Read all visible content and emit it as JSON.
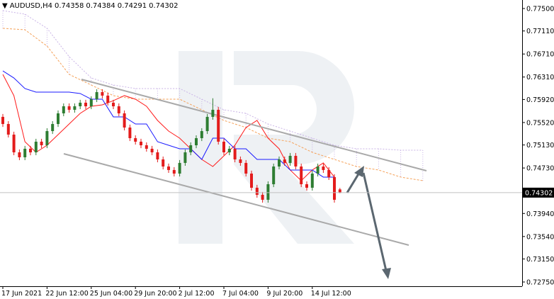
{
  "chart_data": {
    "type": "candlestick",
    "symbol": "AUDUSD,H4",
    "categories": [
      "17 Jun 2021",
      null,
      null,
      null,
      null,
      null,
      null,
      null,
      "22 Jun 12:00",
      null,
      null,
      null,
      null,
      null,
      null,
      null,
      "25 Jun 04:00",
      null,
      null,
      null,
      null,
      null,
      null,
      null,
      "29 Jun 20:00",
      null,
      null,
      null,
      null,
      null,
      null,
      null,
      "2 Jul 12:00",
      null,
      null,
      null,
      null,
      null,
      null,
      null,
      "7 Jul 04:00",
      null,
      null,
      null,
      null,
      null,
      null,
      null,
      "9 Jul 20:00",
      null,
      null,
      null,
      null,
      null,
      null,
      null,
      "14 Jul 12:00",
      null,
      null,
      null,
      null,
      null
    ],
    "open": [
      0.75618,
      0.75494,
      0.7531,
      0.75002,
      0.74916,
      0.75064,
      0.75002,
      0.75187,
      0.75125,
      0.75371,
      0.75494,
      0.75679,
      0.75802,
      0.75741,
      0.75802,
      0.75864,
      0.75802,
      0.75925,
      0.76048,
      0.75987,
      0.75864,
      0.75802,
      0.75679,
      0.75433,
      0.75248,
      0.75187,
      0.75125,
      0.75064,
      0.75002,
      0.74879,
      0.74756,
      0.74695,
      0.74633,
      0.74818,
      0.75002,
      0.75125,
      0.75248,
      0.75371,
      0.75618,
      0.75741,
      0.75187,
      0.75002,
      0.75064,
      0.74879,
      0.74818,
      0.74633,
      0.74387,
      0.74264,
      0.74178,
      0.74448,
      0.74756,
      0.74879,
      0.74818,
      0.74941,
      0.74756,
      0.74448,
      0.74387,
      0.74633,
      0.74756,
      0.74695,
      0.74572,
      0.74358
    ],
    "high": [
      0.75668,
      0.75544,
      0.7536,
      0.75052,
      0.75114,
      0.75114,
      0.75237,
      0.75237,
      0.75421,
      0.75544,
      0.75729,
      0.75852,
      0.75852,
      0.75852,
      0.75914,
      0.75914,
      0.75975,
      0.76098,
      0.76098,
      0.76037,
      0.75914,
      0.75852,
      0.75729,
      0.75483,
      0.75298,
      0.75237,
      0.75175,
      0.75114,
      0.75052,
      0.74929,
      0.74806,
      0.74745,
      0.74868,
      0.75052,
      0.75175,
      0.75298,
      0.75421,
      0.75668,
      0.75941,
      0.75791,
      0.75237,
      0.75114,
      0.75114,
      0.74929,
      0.74868,
      0.74683,
      0.74437,
      0.74314,
      0.74498,
      0.74806,
      0.74929,
      0.74929,
      0.74991,
      0.74991,
      0.74806,
      0.74498,
      0.74683,
      0.74806,
      0.74806,
      0.74745,
      0.74622,
      0.74384
    ],
    "low": [
      0.75444,
      0.7526,
      0.74952,
      0.74866,
      0.74866,
      0.74952,
      0.74952,
      0.75075,
      0.75075,
      0.75321,
      0.75444,
      0.75629,
      0.75691,
      0.75691,
      0.75752,
      0.75752,
      0.75752,
      0.75875,
      0.75937,
      0.75814,
      0.75752,
      0.75629,
      0.75383,
      0.75198,
      0.75137,
      0.75075,
      0.75014,
      0.74952,
      0.74829,
      0.74706,
      0.74645,
      0.74583,
      0.74583,
      0.74768,
      0.74952,
      0.75075,
      0.75198,
      0.75321,
      0.75568,
      0.75137,
      0.74952,
      0.74952,
      0.74829,
      0.74768,
      0.74583,
      0.74337,
      0.74214,
      0.74128,
      0.74128,
      0.74398,
      0.74706,
      0.74768,
      0.74768,
      0.74706,
      0.74398,
      0.74337,
      0.74337,
      0.74583,
      0.74645,
      0.74522,
      0.74128,
      0.74291
    ],
    "close": [
      0.75494,
      0.7531,
      0.75002,
      0.74916,
      0.75064,
      0.75002,
      0.75187,
      0.75125,
      0.75371,
      0.75494,
      0.75679,
      0.75802,
      0.75741,
      0.75802,
      0.75864,
      0.75802,
      0.75925,
      0.76048,
      0.75987,
      0.75864,
      0.75802,
      0.75679,
      0.75433,
      0.75248,
      0.75187,
      0.75125,
      0.75064,
      0.75002,
      0.74879,
      0.74756,
      0.74695,
      0.74633,
      0.74818,
      0.75002,
      0.75125,
      0.75248,
      0.75371,
      0.75618,
      0.75741,
      0.75187,
      0.75002,
      0.75064,
      0.74879,
      0.74818,
      0.74633,
      0.74387,
      0.74264,
      0.74178,
      0.74448,
      0.74756,
      0.74879,
      0.74818,
      0.74941,
      0.74756,
      0.74448,
      0.74387,
      0.74633,
      0.74756,
      0.74695,
      0.74572,
      0.74178,
      0.74302
    ],
    "up_color": "#2e7d32",
    "down_color": "#e31b1b",
    "lines": [
      {
        "color": "#ff1a1a",
        "x": [
          0,
          2,
          4,
          6,
          8,
          10,
          12,
          14,
          16,
          18,
          20,
          22,
          24,
          26,
          28,
          30,
          32,
          34,
          36,
          38,
          40,
          42,
          44,
          46,
          48,
          50,
          52,
          54,
          56,
          58,
          60
        ],
        "values": [
          0.76356,
          0.75987,
          0.75187,
          0.75002,
          0.75125,
          0.7531,
          0.75494,
          0.75679,
          0.75802,
          0.75827,
          0.759,
          0.75987,
          0.75925,
          0.75802,
          0.75556,
          0.75371,
          0.75248,
          0.75064,
          0.74879,
          0.74756,
          0.74941,
          0.75125,
          0.75433,
          0.75556,
          0.75248,
          0.75064,
          0.74695,
          0.7451,
          0.74695,
          0.74818,
          0.74572
        ]
      },
      {
        "color": "#1a1aff",
        "x": [
          0,
          2,
          4,
          6,
          8,
          10,
          12,
          14,
          16,
          18,
          20,
          22,
          24,
          26,
          28,
          30,
          32,
          34,
          36,
          38,
          40,
          42,
          44,
          46,
          48,
          50,
          52,
          54,
          56,
          58,
          60
        ],
        "values": [
          0.76417,
          0.76294,
          0.7611,
          0.76048,
          0.76048,
          0.76048,
          0.76048,
          0.76024,
          0.75925,
          0.75925,
          0.75618,
          0.75618,
          0.75494,
          0.75494,
          0.75187,
          0.75125,
          0.75064,
          0.75064,
          0.74879,
          0.75248,
          0.75248,
          0.75064,
          0.75064,
          0.74879,
          0.74879,
          0.74879,
          0.74695,
          0.74695,
          0.74695,
          0.74572,
          0.74572
        ]
      }
    ],
    "cloud": {
      "x": [
        0,
        4,
        8,
        12,
        16,
        20,
        24,
        28,
        32,
        36,
        40,
        44,
        48,
        52,
        56,
        60,
        64,
        68,
        72,
        76
      ],
      "upper": [
        0.77463,
        0.77402,
        0.77156,
        0.76664,
        0.76294,
        0.76171,
        0.7611,
        0.7611,
        0.7611,
        0.75925,
        0.75741,
        0.75679,
        0.75494,
        0.75371,
        0.75248,
        0.75125,
        0.75064,
        0.75064,
        0.75039,
        0.75039
      ],
      "lower": [
        0.77156,
        0.77131,
        0.76848,
        0.76356,
        0.76171,
        0.75987,
        0.75925,
        0.75925,
        0.75925,
        0.75741,
        0.75556,
        0.75433,
        0.75248,
        0.75187,
        0.75002,
        0.74879,
        0.74756,
        0.74695,
        0.74572,
        0.7451
      ],
      "upper_color": "#c9b3e6",
      "lower_color": "#f5a25a"
    },
    "ylim": [
      0.72676,
      0.77648
    ],
    "yticks": [
      {
        "value": 0.775,
        "label": "0.77500"
      },
      {
        "value": 0.7711,
        "label": "0.77110"
      },
      {
        "value": 0.7671,
        "label": "0.76710"
      },
      {
        "value": 0.7631,
        "label": "0.76310"
      },
      {
        "value": 0.7592,
        "label": "0.75920"
      },
      {
        "value": 0.7552,
        "label": "0.75520"
      },
      {
        "value": 0.7513,
        "label": "0.75130"
      },
      {
        "value": 0.7473,
        "label": "0.74730"
      },
      {
        "value": 0.7394,
        "label": "0.73940"
      },
      {
        "value": 0.7354,
        "label": "0.73540"
      },
      {
        "value": 0.7315,
        "label": "0.73150"
      },
      {
        "value": 0.7275,
        "label": "0.72750"
      }
    ],
    "grid": false
  }
}
